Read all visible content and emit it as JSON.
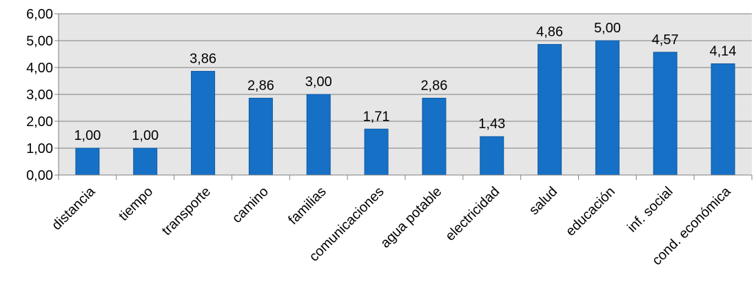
{
  "chart_data": {
    "type": "bar",
    "title": "",
    "xlabel": "",
    "ylabel": "",
    "categories": [
      "distancia",
      "tiempo",
      "transporte",
      "camino",
      "familias",
      "comunicaciones",
      "agua potable",
      "electricidad",
      "salud",
      "educación",
      "inf. social",
      "cond. económica"
    ],
    "values": [
      1.0,
      1.0,
      3.86,
      2.86,
      3.0,
      1.71,
      2.86,
      1.43,
      4.86,
      5.0,
      4.57,
      4.14
    ],
    "value_labels": [
      "1,00",
      "1,00",
      "3,86",
      "2,86",
      "3,00",
      "1,71",
      "2,86",
      "1,43",
      "4,86",
      "5,00",
      "4,57",
      "4,14"
    ],
    "ylim": [
      0,
      6
    ],
    "yticks": [
      "0,00",
      "1,00",
      "2,00",
      "3,00",
      "4,00",
      "5,00",
      "6,00"
    ],
    "grid": true,
    "legend": "none",
    "colors": {
      "bar": "#1670C6",
      "bar_edge": "#0F5AA0",
      "plot_bg": "#E6E6E6",
      "grid": "#7F7F7F",
      "axis": "#7F7F7F"
    }
  }
}
